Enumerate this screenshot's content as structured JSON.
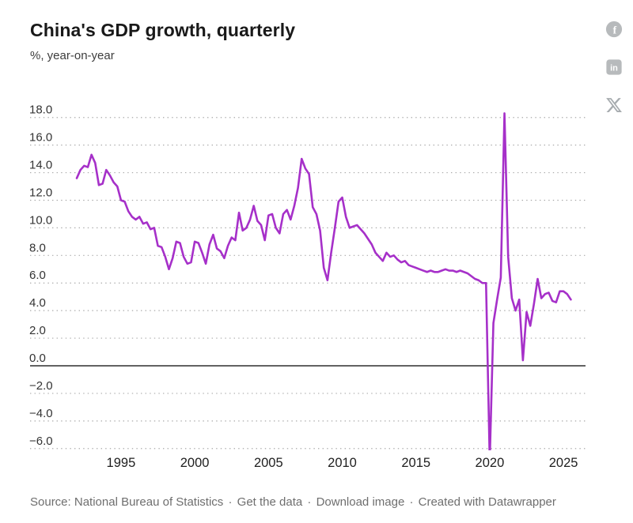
{
  "header": {
    "title": "China's GDP growth, quarterly",
    "subtitle": "%, year-on-year"
  },
  "share": {
    "facebook_glyph": "f",
    "linkedin_glyph": "in",
    "x_glyph": "X"
  },
  "footer": {
    "source_label": "Source:",
    "source": "National Bureau of Statistics",
    "separator": "·",
    "links": [
      "Get the data",
      "Download image"
    ],
    "created": "Created with Datawrapper"
  },
  "chart_data": {
    "type": "line",
    "title": "China's GDP growth, quarterly",
    "subtitle": "%, year-on-year",
    "unit": "%",
    "frequency": "quarterly",
    "start_period": "1992-Q1",
    "end_period": "2025-Q3",
    "x_ticks": [
      1995,
      2000,
      2005,
      2010,
      2015,
      2020,
      2025
    ],
    "y_ticks": [
      18,
      16,
      14,
      12,
      10,
      8,
      6,
      4,
      2,
      0,
      -2,
      -4,
      -6
    ],
    "ylim": [
      -6.2,
      18.5
    ],
    "xlim": [
      1992,
      2025.75
    ],
    "grid": "dotted horizontal",
    "zero_line": true,
    "legend": "none",
    "colors": {
      "line": "#a630c9",
      "grid": "#a9a9a9",
      "zero_line": "#4b4b4b",
      "y_label": "#333333",
      "x_label": "#202020"
    },
    "series": [
      {
        "name": "GDP growth, % year-on-year",
        "values": [
          13.6,
          14.2,
          14.5,
          14.4,
          15.3,
          14.7,
          13.1,
          13.2,
          14.2,
          13.8,
          13.3,
          13.0,
          12.0,
          11.9,
          11.2,
          10.8,
          10.6,
          10.8,
          10.3,
          10.4,
          9.9,
          10.0,
          8.7,
          8.6,
          7.9,
          7.0,
          7.8,
          9.0,
          8.9,
          7.9,
          7.4,
          7.5,
          9.0,
          8.9,
          8.2,
          7.4,
          8.8,
          9.5,
          8.5,
          8.3,
          7.8,
          8.7,
          9.3,
          9.1,
          11.1,
          9.8,
          10.0,
          10.6,
          11.6,
          10.5,
          10.2,
          9.1,
          10.9,
          11.0,
          10.0,
          9.6,
          11.0,
          11.3,
          10.6,
          11.6,
          12.9,
          15.0,
          14.3,
          13.9,
          11.5,
          11.0,
          9.8,
          7.1,
          6.2,
          8.2,
          10.0,
          11.9,
          12.2,
          10.8,
          10.0,
          10.1,
          10.2,
          9.9,
          9.6,
          9.2,
          8.8,
          8.2,
          7.9,
          7.6,
          8.2,
          7.9,
          8.0,
          7.7,
          7.5,
          7.6,
          7.3,
          7.2,
          7.1,
          7.0,
          6.9,
          6.8,
          6.9,
          6.8,
          6.8,
          6.9,
          7.0,
          6.9,
          6.9,
          6.8,
          6.9,
          6.8,
          6.7,
          6.5,
          6.3,
          6.2,
          6.0,
          6.0,
          -6.9,
          3.1,
          4.8,
          6.4,
          18.3,
          7.9,
          4.9,
          4.0,
          4.8,
          0.4,
          3.9,
          2.9,
          4.5,
          6.3,
          4.9,
          5.2,
          5.3,
          4.7,
          4.6,
          5.4,
          5.4,
          5.2,
          4.8
        ]
      }
    ]
  }
}
